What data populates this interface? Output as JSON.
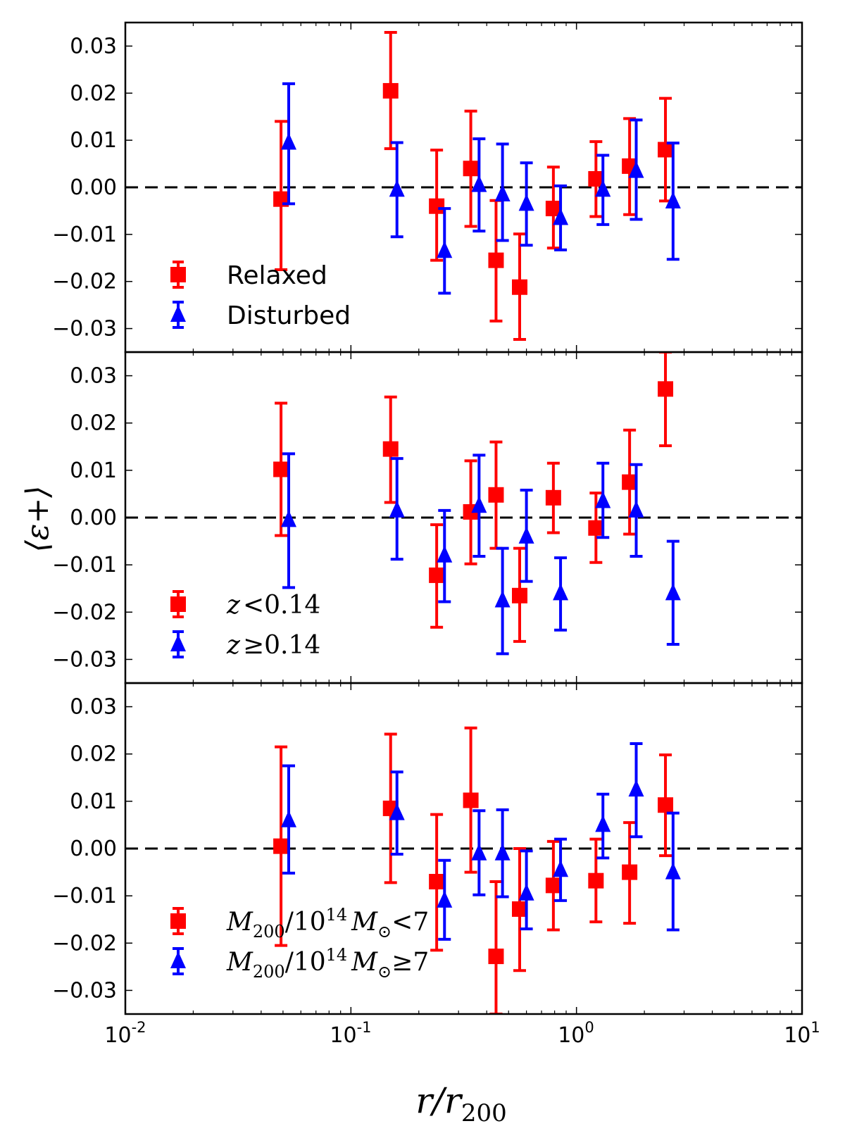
{
  "colors": {
    "red": "#ff0000",
    "blue": "#0000ff",
    "axis": "#000000",
    "zero_line": "#000000"
  },
  "chart_data": {
    "type": "scatter",
    "x_scale": "log",
    "xlim": [
      0.01,
      10
    ],
    "ylim": [
      -0.035,
      0.035
    ],
    "xlabel": "r/r",
    "xlabel_sub": "200",
    "ylabel": "⟨ε+⟩",
    "xtick_labels": [
      {
        "base": "10",
        "exp": "-2"
      },
      {
        "base": "10",
        "exp": "-1"
      },
      {
        "base": "10",
        "exp": "0"
      },
      {
        "base": "10",
        "exp": "1"
      }
    ],
    "ytick_labels": [
      "0.03",
      "0.02",
      "0.01",
      "0.00",
      "−0.01",
      "−0.02",
      "−0.03"
    ],
    "ytick_values": [
      0.03,
      0.02,
      0.01,
      0.0,
      -0.01,
      -0.02,
      -0.03
    ],
    "panels": [
      {
        "legend": [
          {
            "marker": "square",
            "label": "Relaxed"
          },
          {
            "marker": "triangle",
            "label": "Disturbed"
          }
        ],
        "series": [
          {
            "name": "Relaxed",
            "marker": "square",
            "color": "red",
            "x": [
              0.049,
              0.15,
              0.24,
              0.34,
              0.44,
              0.56,
              0.79,
              1.22,
              1.72,
              2.48
            ],
            "y": [
              -0.0025,
              0.0205,
              -0.004,
              0.004,
              -0.0155,
              -0.0212,
              -0.0045,
              0.0018,
              0.0045,
              0.008
            ],
            "yerr_low": [
              -0.0175,
              0.0082,
              -0.0155,
              -0.0083,
              -0.0284,
              -0.0323,
              -0.0129,
              -0.0062,
              -0.0058,
              -0.0029
            ],
            "yerr_high": [
              0.014,
              0.0329,
              0.0079,
              0.0162,
              -0.0028,
              -0.0099,
              0.0043,
              0.0097,
              0.0146,
              0.0189
            ]
          },
          {
            "name": "Disturbed",
            "marker": "triangle",
            "color": "blue",
            "x": [
              0.053,
              0.16,
              0.26,
              0.37,
              0.47,
              0.6,
              0.85,
              1.31,
              1.84,
              2.68
            ],
            "y": [
              0.0095,
              -0.0005,
              -0.0135,
              0.0005,
              -0.0015,
              -0.0035,
              -0.0065,
              -0.0005,
              0.0035,
              -0.003
            ],
            "yerr_low": [
              -0.0035,
              -0.0105,
              -0.0225,
              -0.0093,
              -0.0113,
              -0.0123,
              -0.0133,
              -0.0079,
              -0.0068,
              -0.0153
            ],
            "yerr_high": [
              0.022,
              0.0095,
              -0.0045,
              0.0103,
              0.0092,
              0.0052,
              0.0003,
              0.0068,
              0.0143,
              0.0094
            ]
          }
        ]
      },
      {
        "legend": [
          {
            "marker": "square",
            "label_parts": [
              "z",
              "<0.14"
            ]
          },
          {
            "marker": "triangle",
            "label_parts": [
              "z",
              "≥0.14"
            ]
          }
        ],
        "series": [
          {
            "name": "z<0.14",
            "marker": "square",
            "color": "red",
            "x": [
              0.049,
              0.15,
              0.24,
              0.34,
              0.44,
              0.56,
              0.79,
              1.22,
              1.72,
              2.48
            ],
            "y": [
              0.0102,
              0.0145,
              -0.0122,
              0.0012,
              0.0048,
              -0.0165,
              0.0042,
              -0.0022,
              0.0075,
              0.0272
            ],
            "yerr_low": [
              -0.0038,
              0.0032,
              -0.0232,
              -0.0098,
              -0.0065,
              -0.0262,
              -0.0032,
              -0.0095,
              -0.0035,
              0.0152
            ],
            "yerr_high": [
              0.0242,
              0.0255,
              -0.0015,
              0.012,
              0.016,
              -0.0065,
              0.0115,
              0.0052,
              0.0185,
              0.035
            ]
          },
          {
            "name": "z≥0.14",
            "marker": "triangle",
            "color": "blue",
            "x": [
              0.053,
              0.16,
              0.26,
              0.37,
              0.47,
              0.6,
              0.85,
              1.31,
              1.84,
              2.68
            ],
            "y": [
              -0.0005,
              0.0015,
              -0.008,
              0.0025,
              -0.0175,
              -0.004,
              -0.016,
              0.0035,
              0.0015,
              -0.016
            ],
            "yerr_low": [
              -0.0148,
              -0.0088,
              -0.0178,
              -0.0082,
              -0.0288,
              -0.0135,
              -0.0238,
              -0.0042,
              -0.0082,
              -0.0268
            ],
            "yerr_high": [
              0.0135,
              0.0125,
              0.0015,
              0.0132,
              -0.0065,
              0.0058,
              -0.0085,
              0.0115,
              0.0112,
              -0.005
            ]
          }
        ]
      },
      {
        "legend": [
          {
            "marker": "square",
            "label_parts": [
              "M",
              "200",
              "/10",
              "14",
              "M",
              "⊙",
              "<7"
            ]
          },
          {
            "marker": "triangle",
            "label_parts": [
              "M",
              "200",
              "/10",
              "14",
              "M",
              "⊙",
              "≥7"
            ]
          }
        ],
        "series": [
          {
            "name": "M200/10^14 M⊙ < 7",
            "marker": "square",
            "color": "red",
            "x": [
              0.049,
              0.15,
              0.24,
              0.34,
              0.44,
              0.56,
              0.79,
              1.22,
              1.72,
              2.48
            ],
            "y": [
              0.0005,
              0.0085,
              -0.007,
              0.0102,
              -0.0228,
              -0.0128,
              -0.0078,
              -0.0068,
              -0.005,
              0.0092
            ],
            "yerr_low": [
              -0.0205,
              -0.0072,
              -0.0215,
              -0.005,
              -0.035,
              -0.0258,
              -0.0172,
              -0.0155,
              -0.0158,
              -0.0015
            ],
            "yerr_high": [
              0.0215,
              0.0242,
              0.0072,
              0.0255,
              -0.007,
              0.0,
              0.0015,
              0.002,
              0.0055,
              0.0198
            ]
          },
          {
            "name": "M200/10^14 M⊙ ≥ 7",
            "marker": "triangle",
            "color": "blue",
            "x": [
              0.053,
              0.16,
              0.26,
              0.37,
              0.47,
              0.6,
              0.85,
              1.31,
              1.84,
              2.68
            ],
            "y": [
              0.006,
              0.0075,
              -0.011,
              -0.001,
              -0.001,
              -0.0095,
              -0.0045,
              0.005,
              0.0125,
              -0.005
            ],
            "yerr_low": [
              -0.0052,
              -0.0012,
              -0.0192,
              -0.0098,
              -0.0102,
              -0.017,
              -0.011,
              -0.002,
              0.0025,
              -0.0172
            ],
            "yerr_high": [
              0.0175,
              0.0162,
              -0.0025,
              0.008,
              0.0082,
              -0.0005,
              0.002,
              0.0115,
              0.0222,
              0.0075
            ]
          }
        ]
      }
    ]
  }
}
